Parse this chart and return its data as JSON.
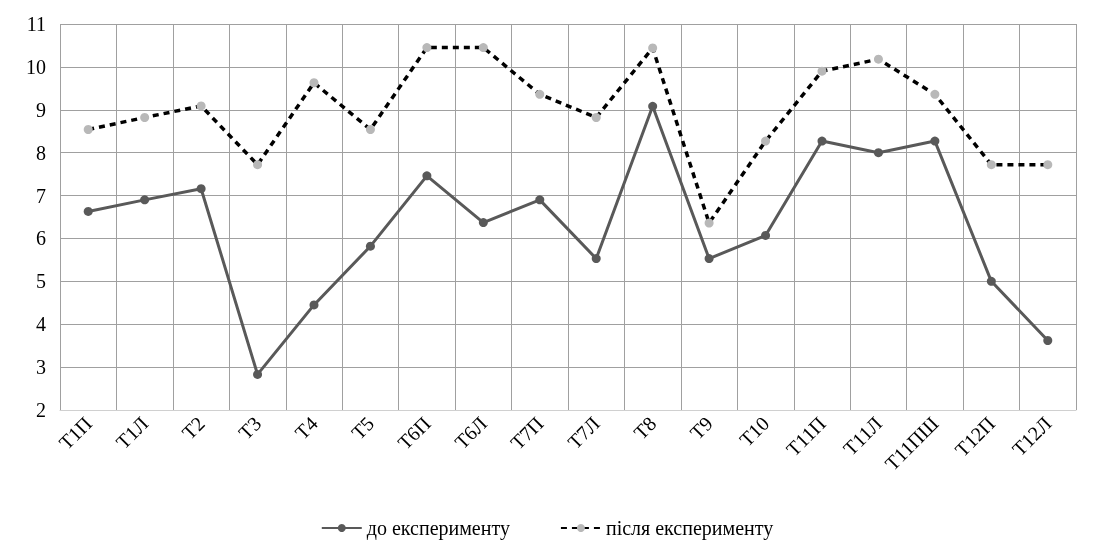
{
  "chart_data": {
    "type": "line",
    "categories": [
      "Т1П",
      "Т1Л",
      "Т2",
      "Т3",
      "Т4",
      "Т5",
      "Т6П",
      "Т6Л",
      "Т7П",
      "Т7Л",
      "Т8",
      "Т9",
      "Т10",
      "Т11П",
      "Т11Л",
      "Т11ПШ",
      "Т12П",
      "Т12Л"
    ],
    "series": [
      {
        "name": "до експерименту",
        "color": "#595959",
        "line_style": "solid",
        "values": [
          6.63,
          6.9,
          7.16,
          2.83,
          4.45,
          5.82,
          7.46,
          6.37,
          6.9,
          5.53,
          9.08,
          5.53,
          6.07,
          8.27,
          8.0,
          8.27,
          5.0,
          3.62
        ]
      },
      {
        "name": "після експерименту",
        "color": "#000000",
        "line_style": "dashed",
        "values": [
          8.54,
          8.82,
          9.09,
          7.72,
          9.63,
          8.54,
          10.45,
          10.45,
          9.36,
          8.82,
          10.44,
          6.36,
          8.27,
          9.9,
          10.18,
          9.36,
          7.72,
          7.72
        ]
      }
    ],
    "ylim": [
      2,
      11
    ],
    "yticks": [
      2,
      3,
      4,
      5,
      6,
      7,
      8,
      9,
      10,
      11
    ],
    "grid": true,
    "legend": "bottom",
    "marker": "circle"
  }
}
